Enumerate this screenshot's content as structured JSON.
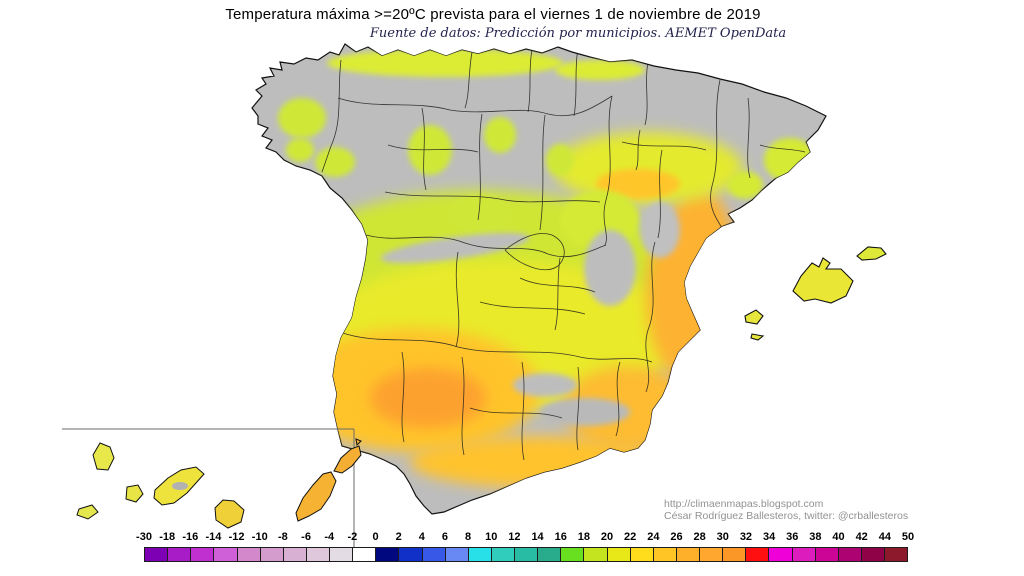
{
  "header": {
    "title": "Temperatura máxima >=20ºC prevista para el viernes 1 de noviembre de 2019",
    "subtitle": "Fuente de datos: Predicción por municipios. AEMET OpenData"
  },
  "attribution": {
    "url": "http://climaenmapas.blogspot.com",
    "author_line": "César Rodríguez Ballesteros, twitter: @crballesteros"
  },
  "legend": {
    "tick_labels": [
      "-30",
      "-18",
      "-16",
      "-14",
      "-12",
      "-10",
      "-8",
      "-6",
      "-4",
      "-2",
      "0",
      "2",
      "4",
      "6",
      "8",
      "10",
      "12",
      "14",
      "16",
      "18",
      "20",
      "22",
      "24",
      "26",
      "28",
      "30",
      "32",
      "34",
      "36",
      "38",
      "40",
      "42",
      "44",
      "50"
    ],
    "cell_colors": [
      "#7d00b4",
      "#a81cc8",
      "#c030d0",
      "#d060d8",
      "#d488cc",
      "#d49ccc",
      "#d8b0d4",
      "#e0c8dc",
      "#e4dce4",
      "#ffffff",
      "#000880",
      "#1030c8",
      "#3858e8",
      "#6888f4",
      "#28e0e8",
      "#30ccbc",
      "#28bca4",
      "#28ac8c",
      "#68e020",
      "#c4e420",
      "#e8e818",
      "#ffdd1c",
      "#ffc524",
      "#ffb02a",
      "#ffa72e",
      "#fb9726",
      "#ff0f0f",
      "#ef00d8",
      "#dd1cbe",
      "#cc0596",
      "#ad0272",
      "#8f0248",
      "#8c1a2c"
    ]
  },
  "map": {
    "below_threshold_color": "#bdbdbd",
    "warm_low_color": "#cfe636",
    "warm_mid_color": "#e9ea2c",
    "warm_high_color": "#ffc42c",
    "warm_peak_color": "#fda12e"
  }
}
